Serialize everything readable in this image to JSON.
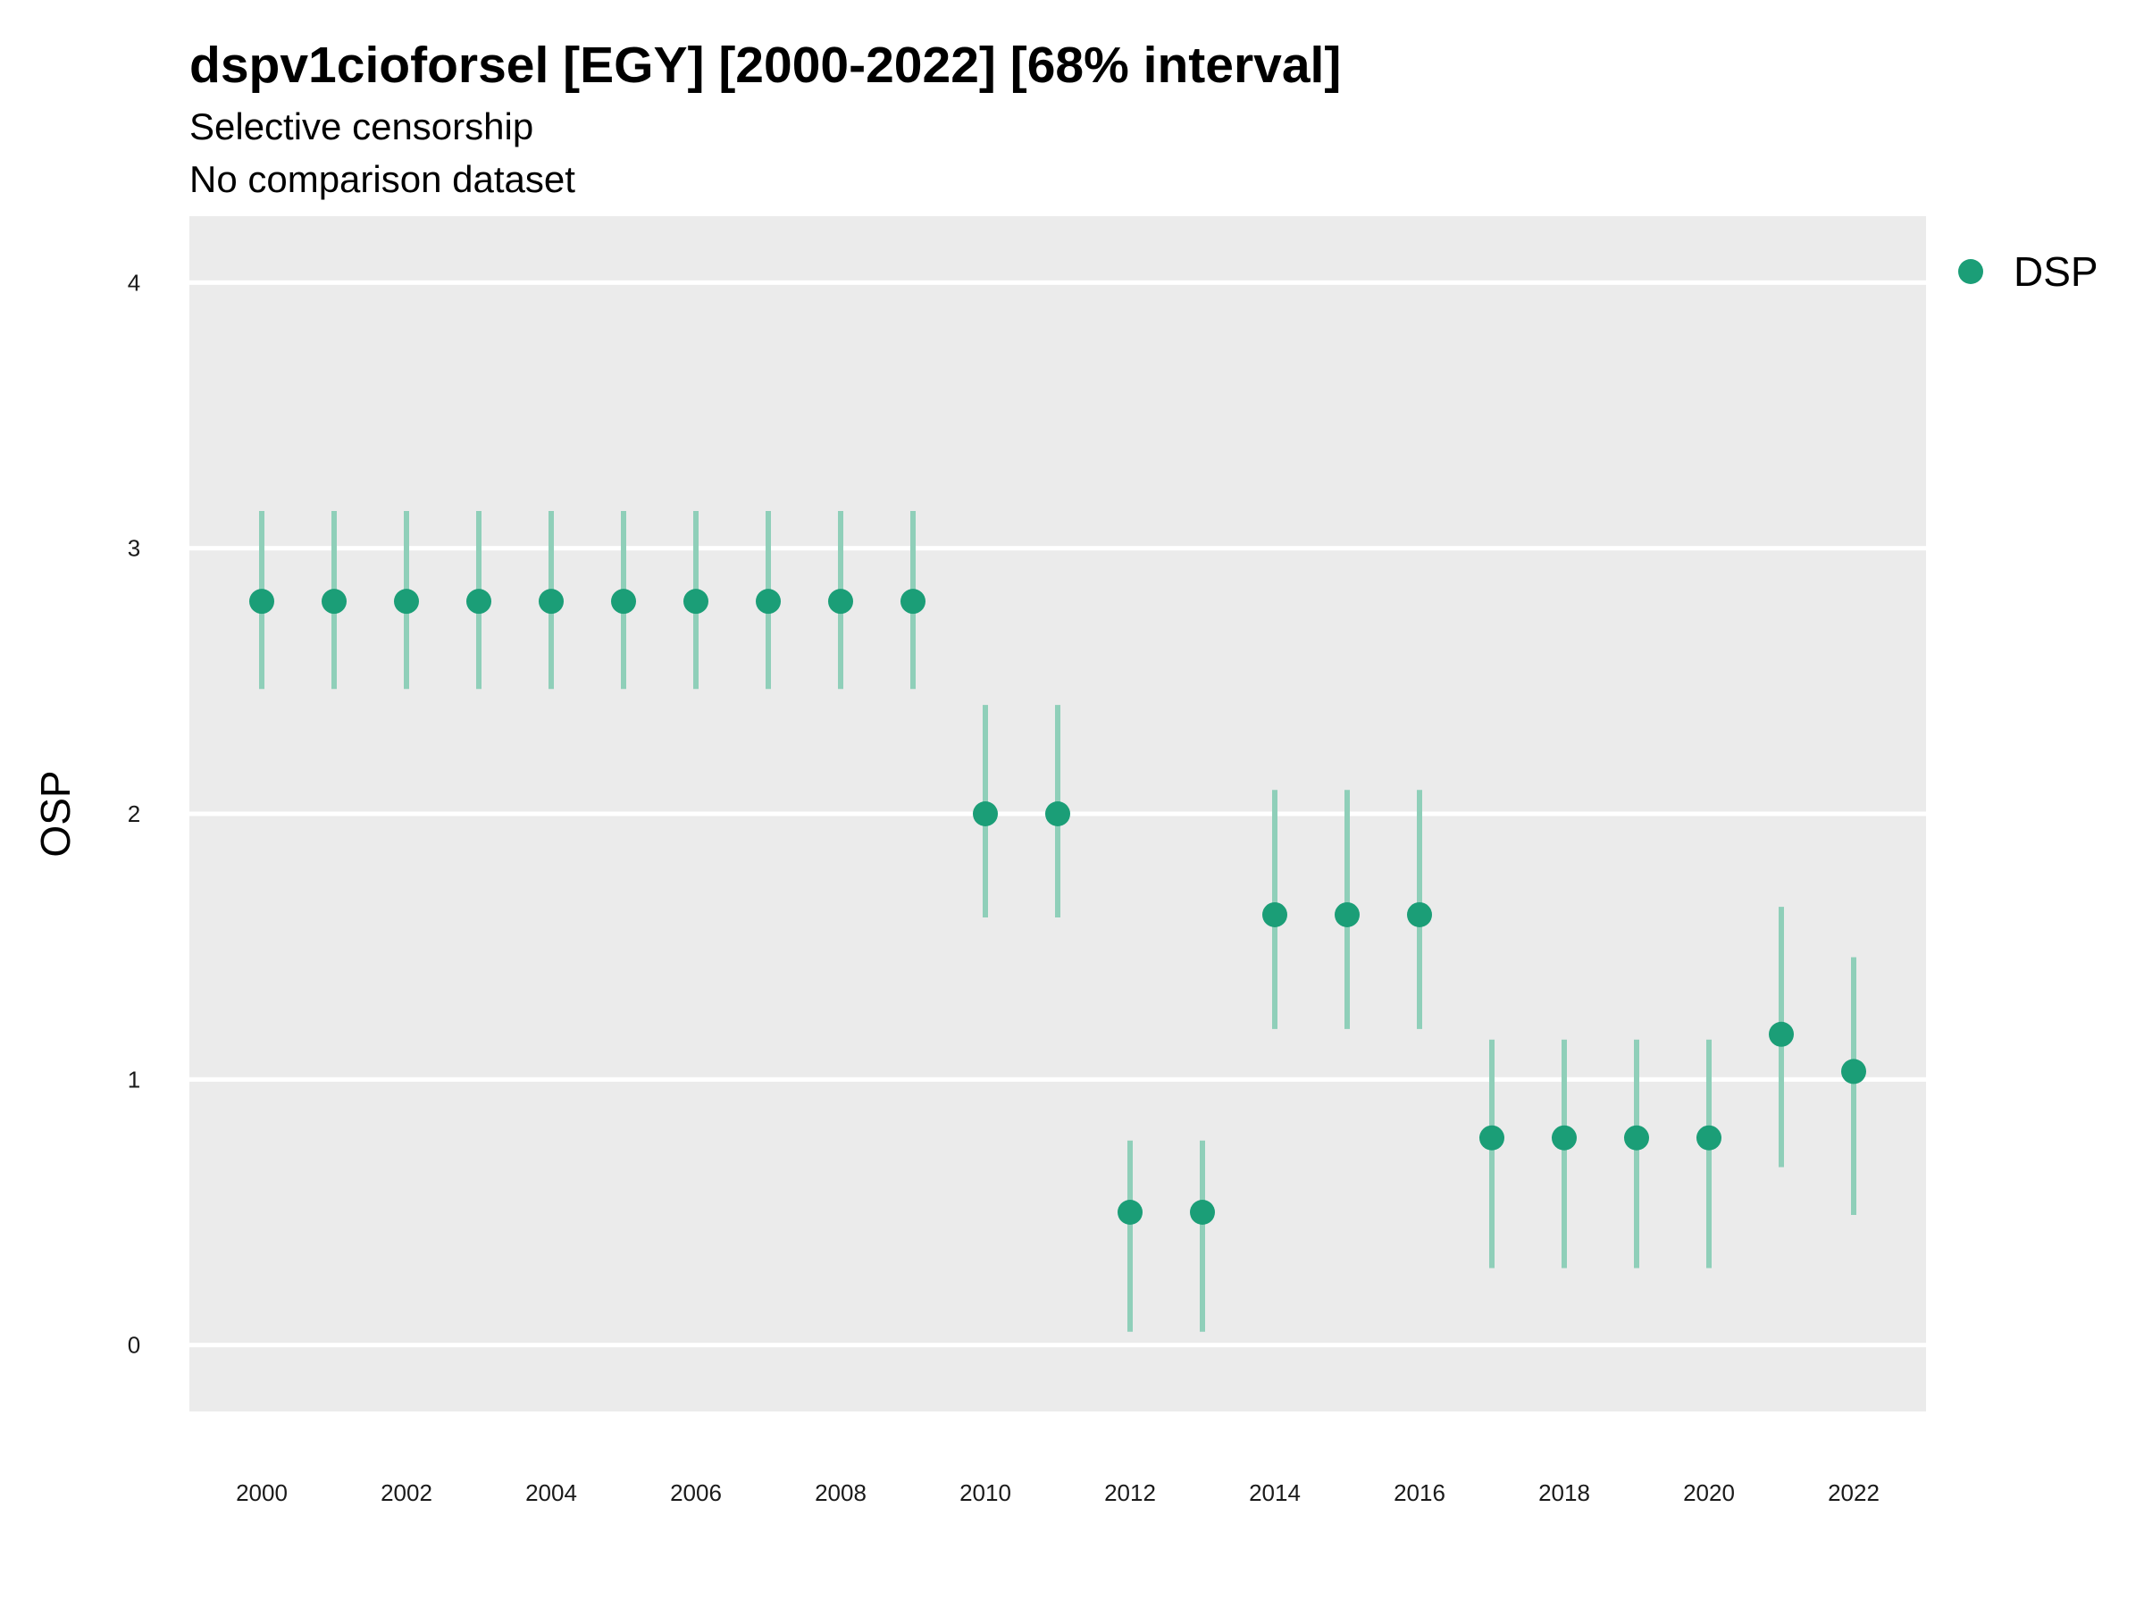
{
  "chart_data": {
    "type": "scatter",
    "title": "dspv1cioforsel [EGY] [2000-2022] [68% interval]",
    "subtitle": "Selective censorship",
    "subtitle2": "No comparison dataset",
    "ylabel": "OSP",
    "xlabel": "",
    "xlim": [
      1999,
      2023
    ],
    "ylim": [
      -0.25,
      4.25
    ],
    "x_ticks": [
      2000,
      2002,
      2004,
      2006,
      2008,
      2010,
      2012,
      2014,
      2016,
      2018,
      2020,
      2022
    ],
    "y_ticks": [
      0,
      1,
      2,
      3,
      4
    ],
    "grid": true,
    "legend_position": "right",
    "series": [
      {
        "name": "DSP",
        "color": "#1b9e77",
        "points": [
          {
            "x": 2000,
            "y": 2.8,
            "lo": 2.47,
            "hi": 3.14
          },
          {
            "x": 2001,
            "y": 2.8,
            "lo": 2.47,
            "hi": 3.14
          },
          {
            "x": 2002,
            "y": 2.8,
            "lo": 2.47,
            "hi": 3.14
          },
          {
            "x": 2003,
            "y": 2.8,
            "lo": 2.47,
            "hi": 3.14
          },
          {
            "x": 2004,
            "y": 2.8,
            "lo": 2.47,
            "hi": 3.14
          },
          {
            "x": 2005,
            "y": 2.8,
            "lo": 2.47,
            "hi": 3.14
          },
          {
            "x": 2006,
            "y": 2.8,
            "lo": 2.47,
            "hi": 3.14
          },
          {
            "x": 2007,
            "y": 2.8,
            "lo": 2.47,
            "hi": 3.14
          },
          {
            "x": 2008,
            "y": 2.8,
            "lo": 2.47,
            "hi": 3.14
          },
          {
            "x": 2009,
            "y": 2.8,
            "lo": 2.47,
            "hi": 3.14
          },
          {
            "x": 2010,
            "y": 2.0,
            "lo": 1.61,
            "hi": 2.41
          },
          {
            "x": 2011,
            "y": 2.0,
            "lo": 1.61,
            "hi": 2.41
          },
          {
            "x": 2012,
            "y": 0.5,
            "lo": 0.05,
            "hi": 0.77
          },
          {
            "x": 2013,
            "y": 0.5,
            "lo": 0.05,
            "hi": 0.77
          },
          {
            "x": 2014,
            "y": 1.62,
            "lo": 1.19,
            "hi": 2.09
          },
          {
            "x": 2015,
            "y": 1.62,
            "lo": 1.19,
            "hi": 2.09
          },
          {
            "x": 2016,
            "y": 1.62,
            "lo": 1.19,
            "hi": 2.09
          },
          {
            "x": 2017,
            "y": 0.78,
            "lo": 0.29,
            "hi": 1.15
          },
          {
            "x": 2018,
            "y": 0.78,
            "lo": 0.29,
            "hi": 1.15
          },
          {
            "x": 2019,
            "y": 0.78,
            "lo": 0.29,
            "hi": 1.15
          },
          {
            "x": 2020,
            "y": 0.78,
            "lo": 0.29,
            "hi": 1.15
          },
          {
            "x": 2021,
            "y": 1.17,
            "lo": 0.67,
            "hi": 1.65
          },
          {
            "x": 2022,
            "y": 1.03,
            "lo": 0.49,
            "hi": 1.46
          }
        ]
      }
    ]
  },
  "colors": {
    "panel_background": "#ebebeb",
    "grid": "#ffffff",
    "interval_color": "#8fcfb9",
    "point_color": "#1b9e77"
  }
}
